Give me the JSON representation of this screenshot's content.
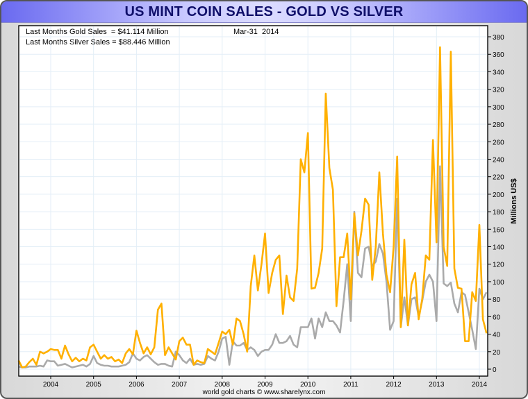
{
  "header": {
    "title": "US MINT COIN SALES - GOLD VS SILVER"
  },
  "info": {
    "gold_label": "Last Months Gold Sales  = $41.114 Million",
    "silver_label": "Last Months Silver Sales = $88.446 Million",
    "date": "Mar-31  2014"
  },
  "footer": {
    "credit": "world gold charts © www.sharelynx.com"
  },
  "colors": {
    "gold": "#ffb000",
    "silver": "#aaaaaa",
    "grid": "#e3eef7",
    "title_bar": "#8080f0"
  },
  "chart_data": {
    "type": "line",
    "title": "US MINT COIN SALES - GOLD VS SILVER",
    "ylabel": "Millions US$",
    "xlabel": "",
    "ylim": [
      0,
      380
    ],
    "yticks": [
      0,
      20,
      40,
      60,
      80,
      100,
      120,
      140,
      160,
      180,
      200,
      220,
      240,
      260,
      280,
      300,
      320,
      340,
      360,
      380
    ],
    "xticks": [
      "2004",
      "2005",
      "2006",
      "2007",
      "2008",
      "2009",
      "2010",
      "2011",
      "2012",
      "2013",
      "2014"
    ],
    "x_start": "2003-04",
    "x_end": "2014-03",
    "frequency": "monthly",
    "grid": true,
    "series": [
      {
        "name": "Gold",
        "color": "#ffb000",
        "values": [
          10,
          2,
          3,
          8,
          12,
          5,
          20,
          18,
          20,
          23,
          22,
          22,
          12,
          27,
          17,
          9,
          13,
          9,
          12,
          10,
          25,
          28,
          20,
          12,
          16,
          12,
          14,
          9,
          11,
          7,
          18,
          23,
          17,
          44,
          30,
          18,
          25,
          17,
          25,
          68,
          75,
          16,
          25,
          18,
          11,
          32,
          36,
          28,
          28,
          5,
          10,
          8,
          7,
          23,
          20,
          17,
          30,
          43,
          40,
          45,
          28,
          58,
          55,
          40,
          20,
          95,
          130,
          90,
          120,
          155,
          87,
          110,
          125,
          130,
          63,
          107,
          82,
          78,
          115,
          240,
          225,
          270,
          92,
          93,
          110,
          138,
          315,
          230,
          205,
          72,
          128,
          128,
          155,
          80,
          178,
          130,
          158,
          195,
          188,
          102,
          140,
          225,
          155,
          108,
          88,
          140,
          243,
          48,
          148,
          50,
          97,
          110,
          57,
          80,
          130,
          125,
          262,
          145,
          368,
          140,
          118,
          363,
          115,
          93,
          92,
          32,
          32,
          88,
          78,
          165,
          57,
          41
        ]
      },
      {
        "name": "Silver",
        "color": "#aaaaaa",
        "values": [
          3,
          2,
          2,
          3,
          3,
          3,
          4,
          3,
          10,
          9,
          9,
          4,
          5,
          6,
          4,
          2,
          3,
          4,
          5,
          3,
          6,
          15,
          7,
          5,
          4,
          4,
          3,
          3,
          3,
          4,
          5,
          8,
          18,
          12,
          10,
          14,
          16,
          12,
          8,
          5,
          6,
          6,
          4,
          3,
          20,
          16,
          10,
          7,
          12,
          5,
          6,
          5,
          6,
          15,
          12,
          10,
          20,
          35,
          37,
          5,
          32,
          27,
          27,
          30,
          22,
          25,
          22,
          15,
          20,
          22,
          22,
          28,
          40,
          30,
          30,
          32,
          38,
          28,
          25,
          48,
          48,
          48,
          58,
          35,
          58,
          48,
          65,
          55,
          55,
          50,
          42,
          78,
          120,
          55,
          180,
          110,
          105,
          138,
          140,
          118,
          123,
          143,
          132,
          100,
          45,
          55,
          195,
          48,
          82,
          50,
          80,
          82,
          60,
          78,
          100,
          108,
          100,
          55,
          232,
          98,
          95,
          99,
          75,
          65,
          88,
          85,
          65,
          45,
          23,
          92,
          80,
          88
        ]
      }
    ]
  }
}
